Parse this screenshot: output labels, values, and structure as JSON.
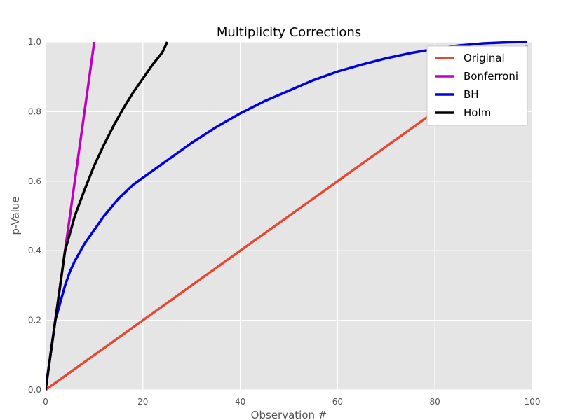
{
  "chart_data": {
    "type": "line",
    "title": "Multiplicity Corrections",
    "xlabel": "Observation #",
    "ylabel": "p-Value",
    "xlim": [
      0,
      100
    ],
    "ylim": [
      0,
      1
    ],
    "xticks": [
      0,
      20,
      40,
      60,
      80,
      100
    ],
    "yticks": [
      0.0,
      0.2,
      0.4,
      0.6,
      0.8,
      1.0
    ],
    "xtick_labels": [
      "0",
      "20",
      "40",
      "60",
      "80",
      "100"
    ],
    "ytick_labels": [
      "0.0",
      "0.2",
      "0.4",
      "0.6",
      "0.8",
      "1.0"
    ],
    "grid": true,
    "legend_position": "top-right",
    "background_color": "#e5e5e5",
    "series": [
      {
        "name": "Original",
        "color": "#e24a33",
        "x": [
          0,
          25,
          50,
          75,
          99
        ],
        "y": [
          0.0,
          0.25,
          0.5,
          0.75,
          0.99
        ]
      },
      {
        "name": "Bonferroni",
        "color": "#bf00bf",
        "x": [
          0,
          1,
          2,
          3,
          4,
          5,
          6,
          7,
          8,
          9,
          10
        ],
        "y": [
          0.0,
          0.1,
          0.2,
          0.3,
          0.4,
          0.5,
          0.6,
          0.7,
          0.8,
          0.9,
          1.0
        ]
      },
      {
        "name": "BH",
        "color": "#0000dd",
        "x": [
          0,
          1,
          2,
          3,
          4,
          5,
          6,
          8,
          10,
          12,
          15,
          18,
          20,
          25,
          30,
          35,
          40,
          45,
          50,
          55,
          60,
          65,
          70,
          75,
          80,
          85,
          90,
          95,
          99
        ],
        "y": [
          0.0,
          0.1,
          0.2,
          0.25,
          0.3,
          0.34,
          0.37,
          0.42,
          0.46,
          0.5,
          0.55,
          0.59,
          0.61,
          0.66,
          0.71,
          0.755,
          0.795,
          0.83,
          0.86,
          0.89,
          0.915,
          0.935,
          0.953,
          0.968,
          0.98,
          0.99,
          0.996,
          0.999,
          1.0
        ]
      },
      {
        "name": "Holm",
        "color": "#000000",
        "x": [
          0,
          1,
          2,
          3,
          4,
          5,
          6,
          8,
          10,
          12,
          14,
          16,
          18,
          20,
          22,
          24,
          25
        ],
        "y": [
          0.0,
          0.1,
          0.2,
          0.3,
          0.4,
          0.45,
          0.5,
          0.575,
          0.645,
          0.705,
          0.76,
          0.81,
          0.855,
          0.895,
          0.935,
          0.97,
          1.0
        ]
      }
    ]
  }
}
